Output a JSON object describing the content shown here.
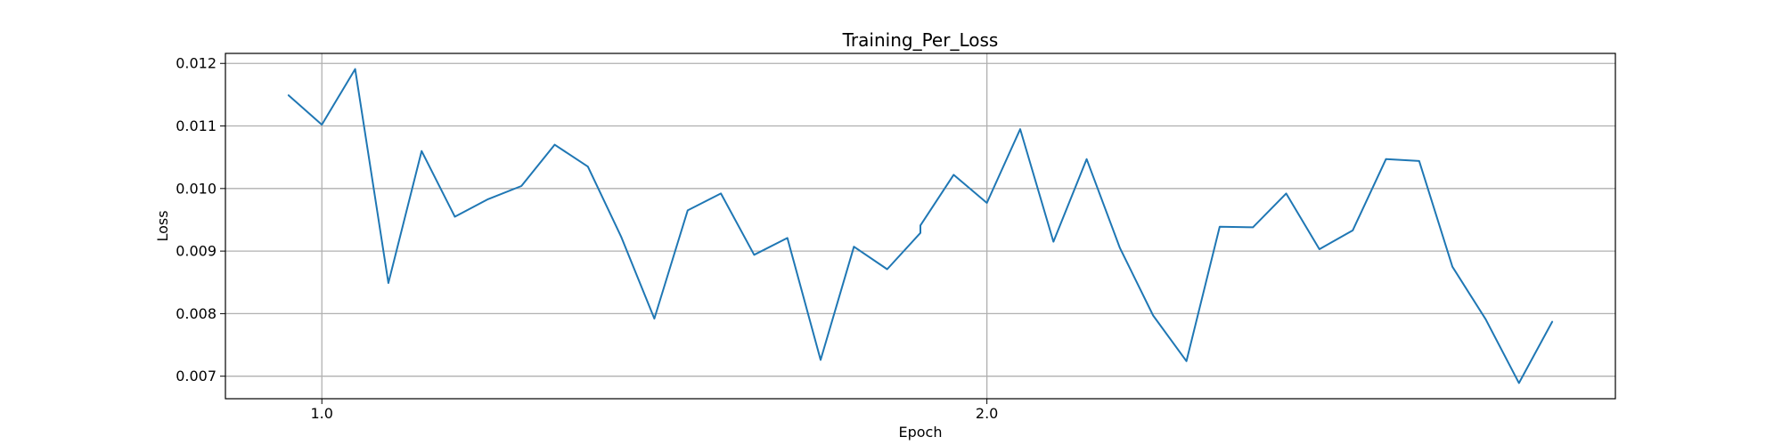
{
  "chart_data": {
    "type": "line",
    "title": "Training_Per_Loss",
    "xlabel": "Epoch",
    "ylabel": "Loss",
    "xlim": [
      0.855,
      2.945
    ],
    "ylim": [
      0.00664,
      0.01216
    ],
    "xticks": [
      1.0,
      2.0
    ],
    "xtick_labels": [
      "1.0",
      "2.0"
    ],
    "yticks": [
      0.007,
      0.008,
      0.009,
      0.01,
      0.011,
      0.012
    ],
    "ytick_labels": [
      "0.007",
      "0.008",
      "0.009",
      "0.010",
      "0.011",
      "0.012"
    ],
    "grid": true,
    "color": "#1f77b4",
    "series": [
      {
        "x": [
          0.95,
          1.0,
          1.05,
          1.1,
          1.15,
          1.2,
          1.25,
          1.3,
          1.35,
          1.4,
          1.45,
          1.5,
          1.55,
          1.6,
          1.65,
          1.7,
          1.75,
          1.8,
          1.85,
          1.9,
          1.9,
          1.95,
          2.0,
          2.05,
          2.1,
          2.15,
          2.2,
          2.25,
          2.3,
          2.35,
          2.4,
          2.45,
          2.5,
          2.55,
          2.6,
          2.65,
          2.7,
          2.75,
          2.8,
          2.85
        ],
        "values": [
          0.01149,
          0.01102,
          0.01191,
          0.00849,
          0.0106,
          0.00955,
          0.00983,
          0.01004,
          0.0107,
          0.01035,
          0.00923,
          0.00792,
          0.00965,
          0.00992,
          0.00894,
          0.00921,
          0.00726,
          0.00907,
          0.00871,
          0.00929,
          0.00941,
          0.01022,
          0.00977,
          0.01095,
          0.00915,
          0.01047,
          0.00905,
          0.00797,
          0.00724,
          0.00939,
          0.00938,
          0.00992,
          0.00903,
          0.00933,
          0.01047,
          0.01044,
          0.00875,
          0.00791,
          0.00689,
          0.00787
        ]
      }
    ]
  }
}
